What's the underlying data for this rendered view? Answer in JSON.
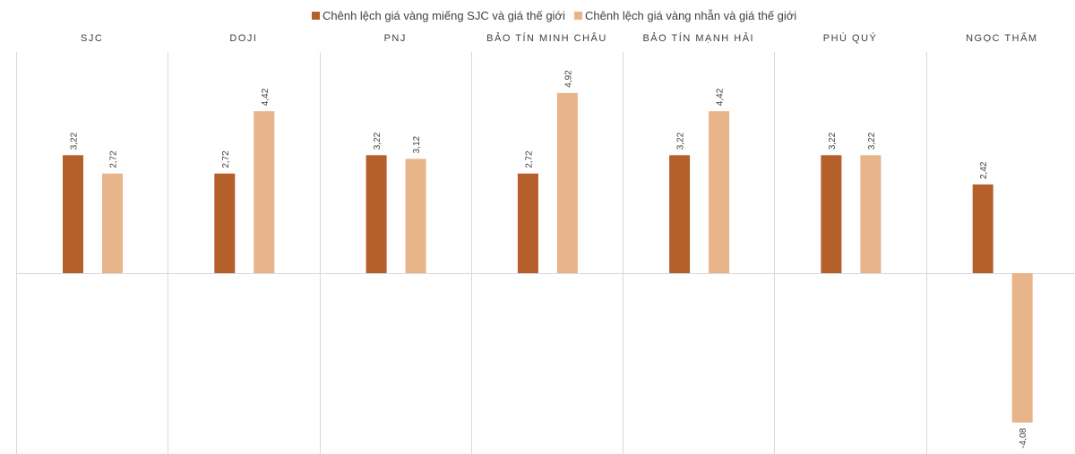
{
  "chart_data": {
    "type": "bar",
    "legend_position": "top",
    "grid": false,
    "categories": [
      "SJC",
      "DOJI",
      "PNJ",
      "BẢO TÍN MINH CHÂU",
      "BẢO TÍN MẠNH HẢI",
      "PHÚ QUÝ",
      "NGỌC THẨM"
    ],
    "series": [
      {
        "name": "Chênh lệch giá vàng miếng SJC và giá thế giới",
        "color": "#b5602a",
        "values": [
          3.22,
          2.72,
          3.22,
          2.72,
          3.22,
          3.22,
          2.42
        ],
        "labels": [
          "3,22",
          "2,72",
          "3,22",
          "2,72",
          "3,22",
          "3,22",
          "2,42"
        ]
      },
      {
        "name": "Chênh lệch giá vàng nhẫn và giá thế giới",
        "color": "#e8b48a",
        "values": [
          2.72,
          4.42,
          3.12,
          4.92,
          4.42,
          3.22,
          -4.08
        ],
        "labels": [
          "2,72",
          "4,42",
          "3,12",
          "4,92",
          "4,42",
          "3,22",
          "-4,08"
        ]
      }
    ],
    "ylim": [
      -4.9,
      6.5
    ]
  }
}
